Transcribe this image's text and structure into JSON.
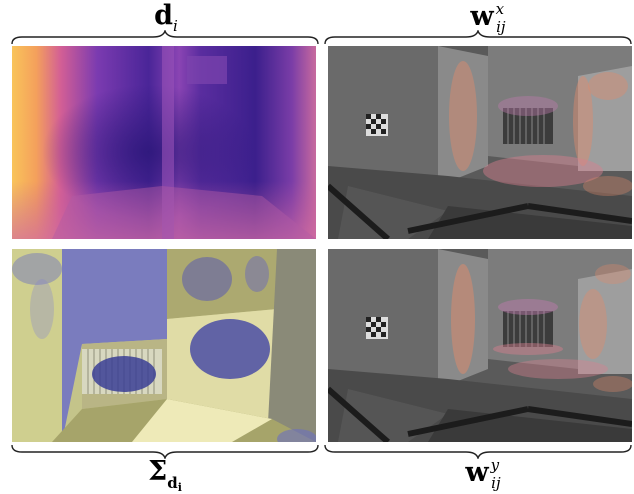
{
  "labels": {
    "top_left": {
      "main": "d",
      "sub": "i"
    },
    "top_right": {
      "main": "w",
      "sup": "x",
      "sub": "ij"
    },
    "bottom_left": {
      "main": "Σ",
      "sub": "d",
      "sub2": "i"
    },
    "bottom_right": {
      "main": "w",
      "sup": "y",
      "sub": "ij"
    }
  },
  "panels": [
    {
      "id": "depth-map",
      "description_icon": "depth-heatmap-icon"
    },
    {
      "id": "weight-x-overlay",
      "description_icon": "weight-overlay-icon"
    },
    {
      "id": "uncertainty-overlay",
      "description_icon": "uncertainty-overlay-icon"
    },
    {
      "id": "weight-y-overlay",
      "description_icon": "weight-overlay-icon"
    }
  ],
  "colors": {
    "depth_near": "#f7c65a",
    "depth_far": "#3a1a8c",
    "weight_overlay": "#e08a6a",
    "uncertainty_overlay": "#6b6fc0",
    "room_yellow": "#d8d89a",
    "room_gray": "#6e6e6e"
  }
}
